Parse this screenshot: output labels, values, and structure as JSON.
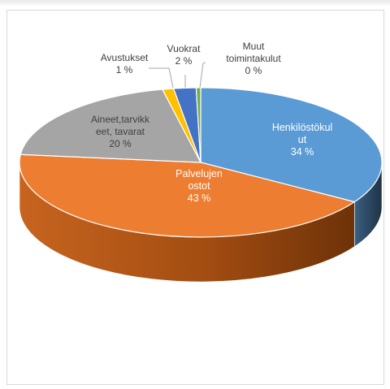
{
  "chart_data": {
    "type": "pie",
    "style": "3d",
    "title": "",
    "slices": [
      {
        "label_lines": [
          "Henkilöstökul",
          "ut"
        ],
        "value_label": "34 %",
        "value": 34,
        "color": "#5b9bd5",
        "side_color": "#2e4a65"
      },
      {
        "label_lines": [
          "Palvelujen",
          "ostot"
        ],
        "value_label": "43 %",
        "value": 43,
        "color": "#ed7d31",
        "side_color": "#b25a1f"
      },
      {
        "label_lines": [
          "Aineet,tarvikk",
          "eet, tavarat"
        ],
        "value_label": "20 %",
        "value": 20,
        "color": "#a5a5a5",
        "side_color": "#6f6f6f"
      },
      {
        "label_lines": [
          "Avustukset"
        ],
        "value_label": "1 %",
        "value": 1,
        "color": "#ffc000",
        "side_color": "#b38600"
      },
      {
        "label_lines": [
          "Vuokrat"
        ],
        "value_label": "2 %",
        "value": 2,
        "color": "#4472c4",
        "side_color": "#2f4f88"
      },
      {
        "label_lines": [
          "Muut",
          "toimintakulut"
        ],
        "value_label": "0 %",
        "value": 0.4,
        "color": "#70ad47",
        "side_color": "#4d7a30"
      }
    ]
  }
}
